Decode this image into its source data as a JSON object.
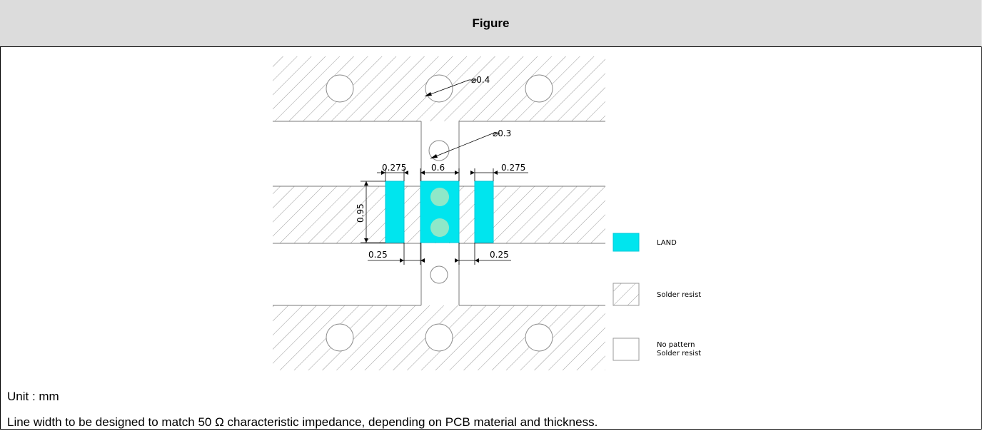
{
  "header": {
    "title": "Figure"
  },
  "diagram": {
    "dimensions": {
      "via_large": "⌀0.4",
      "via_small": "⌀0.3",
      "left_width": "0.275",
      "center_width": "0.6",
      "right_width": "0.275",
      "land_height": "0.95",
      "left_gap": "0.25",
      "right_gap": "0.25"
    },
    "legend": {
      "land": "LAND",
      "solder_resist": "Solder resist",
      "no_pattern_line1": "No pattern",
      "no_pattern_line2": "Solder resist"
    },
    "colors": {
      "land": "#00e5ee",
      "land_border": "#00c8d8",
      "hatch": "#9a9a9a",
      "via_fill_on_land": "#8fe8c8"
    }
  },
  "notes": {
    "unit": "Unit : mm",
    "line_width": "Line width to be designed to match 50 Ω characteristic impedance, depending on PCB material and thickness."
  }
}
